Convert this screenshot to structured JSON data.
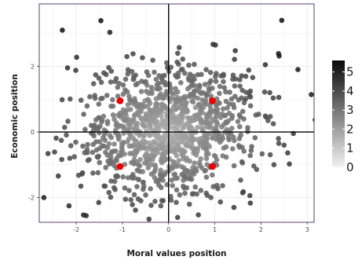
{
  "chart_data": {
    "type": "scatter",
    "title": "",
    "xlabel": "Moral values position",
    "ylabel": "Economic position",
    "xlim": [
      -2.8,
      3.15
    ],
    "ylim": [
      -2.75,
      3.9
    ],
    "x_ticks": [
      "-2",
      "-1",
      "0",
      "1",
      "2",
      "3"
    ],
    "x_tick_values": [
      -2,
      -1,
      0,
      1,
      2,
      3
    ],
    "y_ticks": [
      "-2",
      "0",
      "2"
    ],
    "y_tick_values": [
      -2,
      0,
      2
    ],
    "reference_lines": {
      "x": 0,
      "y": 0
    },
    "grid": true,
    "color_legend": {
      "placement": "right",
      "labels": [
        "5",
        "4",
        "3",
        "2",
        "1",
        "0"
      ],
      "values": [
        5,
        4,
        3,
        2,
        1,
        0
      ],
      "range": [
        0,
        5.6
      ]
    },
    "highlighted_points": [
      {
        "x": -1.05,
        "y": 0.95
      },
      {
        "x": 0.95,
        "y": 0.95
      },
      {
        "x": -1.05,
        "y": -1.05
      },
      {
        "x": 0.95,
        "y": -1.05
      }
    ],
    "points": {
      "count": 1100,
      "distribution": "bivariate normal, centered near (0, 0.05), sd ~0.95 x 1.0, color intensity increases with distance from origin",
      "notable_outliers": [
        {
          "x": -2.3,
          "y": 3.1
        },
        {
          "x": 2.45,
          "y": 3.4
        },
        {
          "x": 2.8,
          "y": 1.9
        },
        {
          "x": 0.45,
          "y": -2.2
        },
        {
          "x": -2.7,
          "y": -2.0
        },
        {
          "x": 2.5,
          "y": -0.4
        }
      ]
    }
  },
  "colors": {
    "panel_background": "#ffffff",
    "grid": "#ebebeb",
    "panel_border": "#5b3f6a",
    "reference_line": "#000000",
    "highlight": "#ee0000",
    "gradient_low": "#f2f2f2",
    "gradient_high": "#0a0a0a"
  }
}
